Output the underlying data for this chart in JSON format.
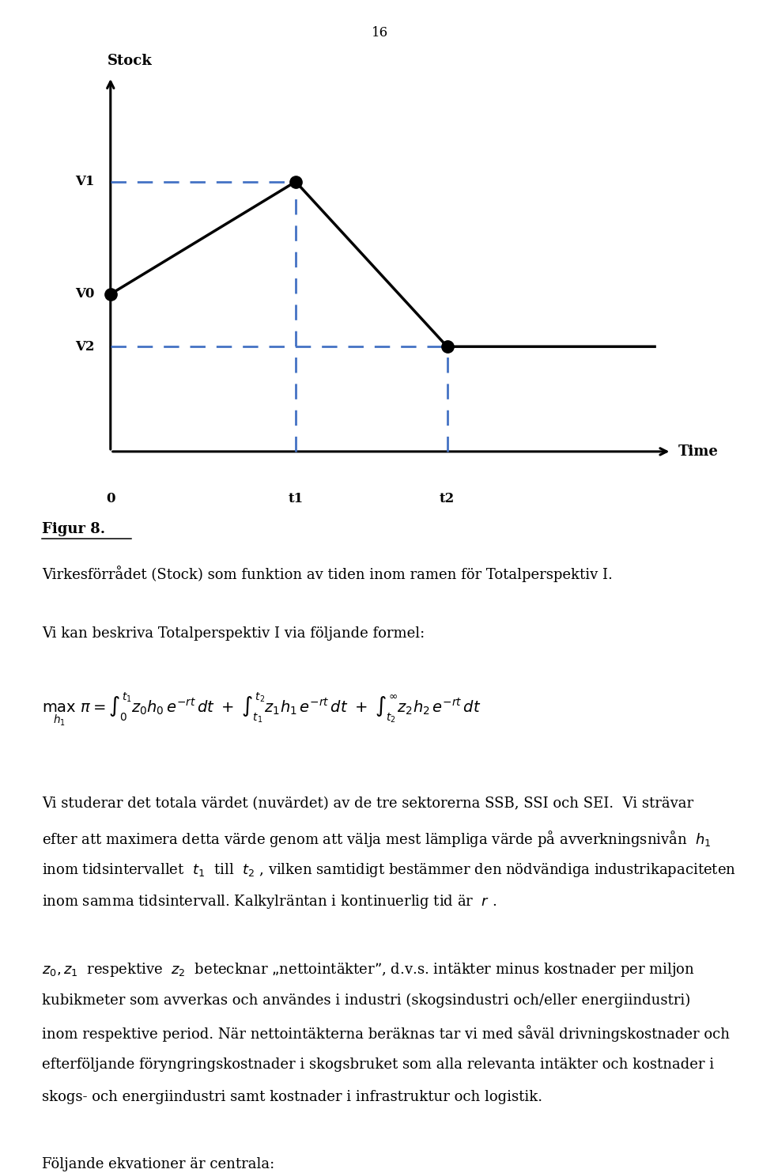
{
  "page_number": "16",
  "graph": {
    "ylabel": "Stock",
    "xlabel": "Time",
    "V0": 0.42,
    "V1": 0.72,
    "V2": 0.28,
    "t0": 0.0,
    "t1": 0.33,
    "t2": 0.6,
    "dashed_color": "#4472C4"
  },
  "figur_label": "Figur 8.",
  "caption": "Virkesförrådet (Stock) som funktion av tiden inom ramen för Totalperspektiv I.",
  "text1": "Vi kan beskriva Totalperspektiv I via följande formel:",
  "text2_lines": [
    "Vi studerar det totala värdet (nuvärdet) av de tre sektorerna SSB, SSI och SEI.  Vi strävar",
    "efter att maximera detta värde genom att välja mest lämpliga värde på avverkningsnivån  $h_1$",
    "inom tidsintervallet  $t_1$  till  $t_2$ , vilken samtidigt bestämmer den nödvändiga industrikapaciteten",
    "inom samma tidsintervall. Kalkylräntan i kontinuerlig tid är  $r$ ."
  ],
  "text3_lines": [
    "$z_0, z_1$  respektive  $z_2$  betecknar „nettointäkter”, d.v.s. intäkter minus kostnader per miljon",
    "kubikmeter som avverkas och användes i industri (skogsindustri och/eller energiindustri)",
    "inom respektive period. När nettointäkterna beräknas tar vi med såväl drivningskostnader och",
    "efterföljande föryngringskostnader i skogsbruket som alla relevanta intäkter och kostnader i",
    "skogs- och energiindustri samt kostnader i infrastruktur och logistik."
  ],
  "text4": "Följande ekvationer är centrala:",
  "background_color": "#ffffff"
}
